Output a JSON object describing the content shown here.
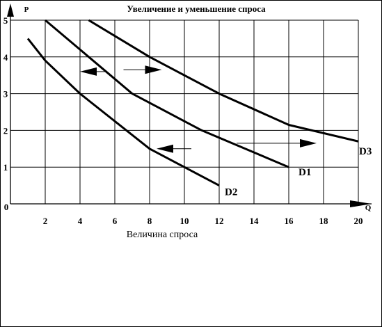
{
  "chart_data": {
    "type": "line",
    "title": "Увеличение и уменьшение спроса",
    "xlabel": "Величина спроса",
    "ylabel": "",
    "x_axis_letter": "Q",
    "y_axis_letter": "P",
    "origin_label": "0",
    "xlim": [
      0,
      20
    ],
    "ylim": [
      0,
      5
    ],
    "x_ticks": [
      2,
      4,
      6,
      8,
      10,
      12,
      14,
      16,
      18,
      20
    ],
    "y_ticks": [
      1,
      2,
      3,
      4,
      5
    ],
    "grid": true,
    "series": [
      {
        "name": "D1",
        "points": [
          [
            2,
            5
          ],
          [
            7,
            3
          ],
          [
            11,
            2
          ],
          [
            16,
            1
          ]
        ]
      },
      {
        "name": "D2",
        "points": [
          [
            1,
            4.5
          ],
          [
            2,
            3.9
          ],
          [
            4,
            3
          ],
          [
            8,
            1.5
          ],
          [
            10,
            1
          ],
          [
            12,
            0.5
          ]
        ]
      },
      {
        "name": "D3",
        "points": [
          [
            4.5,
            5
          ],
          [
            8,
            4
          ],
          [
            12,
            3
          ],
          [
            16,
            2.15
          ],
          [
            20,
            1.7
          ]
        ]
      }
    ],
    "annotations": [
      {
        "type": "arrow",
        "direction": "left",
        "from": [
          5.5,
          3.6
        ],
        "to": [
          4,
          3.6
        ]
      },
      {
        "type": "arrow",
        "direction": "right",
        "from": [
          6.5,
          3.65
        ],
        "to": [
          8.7,
          3.65
        ]
      },
      {
        "type": "arrow",
        "direction": "left",
        "from": [
          10.4,
          1.5
        ],
        "to": [
          8.4,
          1.5
        ]
      },
      {
        "type": "arrow",
        "direction": "right",
        "from": [
          13,
          1.65
        ],
        "to": [
          17.6,
          1.65
        ]
      }
    ],
    "colors": {
      "line": "#000000",
      "grid": "#000000",
      "background": "#ffffff"
    }
  }
}
